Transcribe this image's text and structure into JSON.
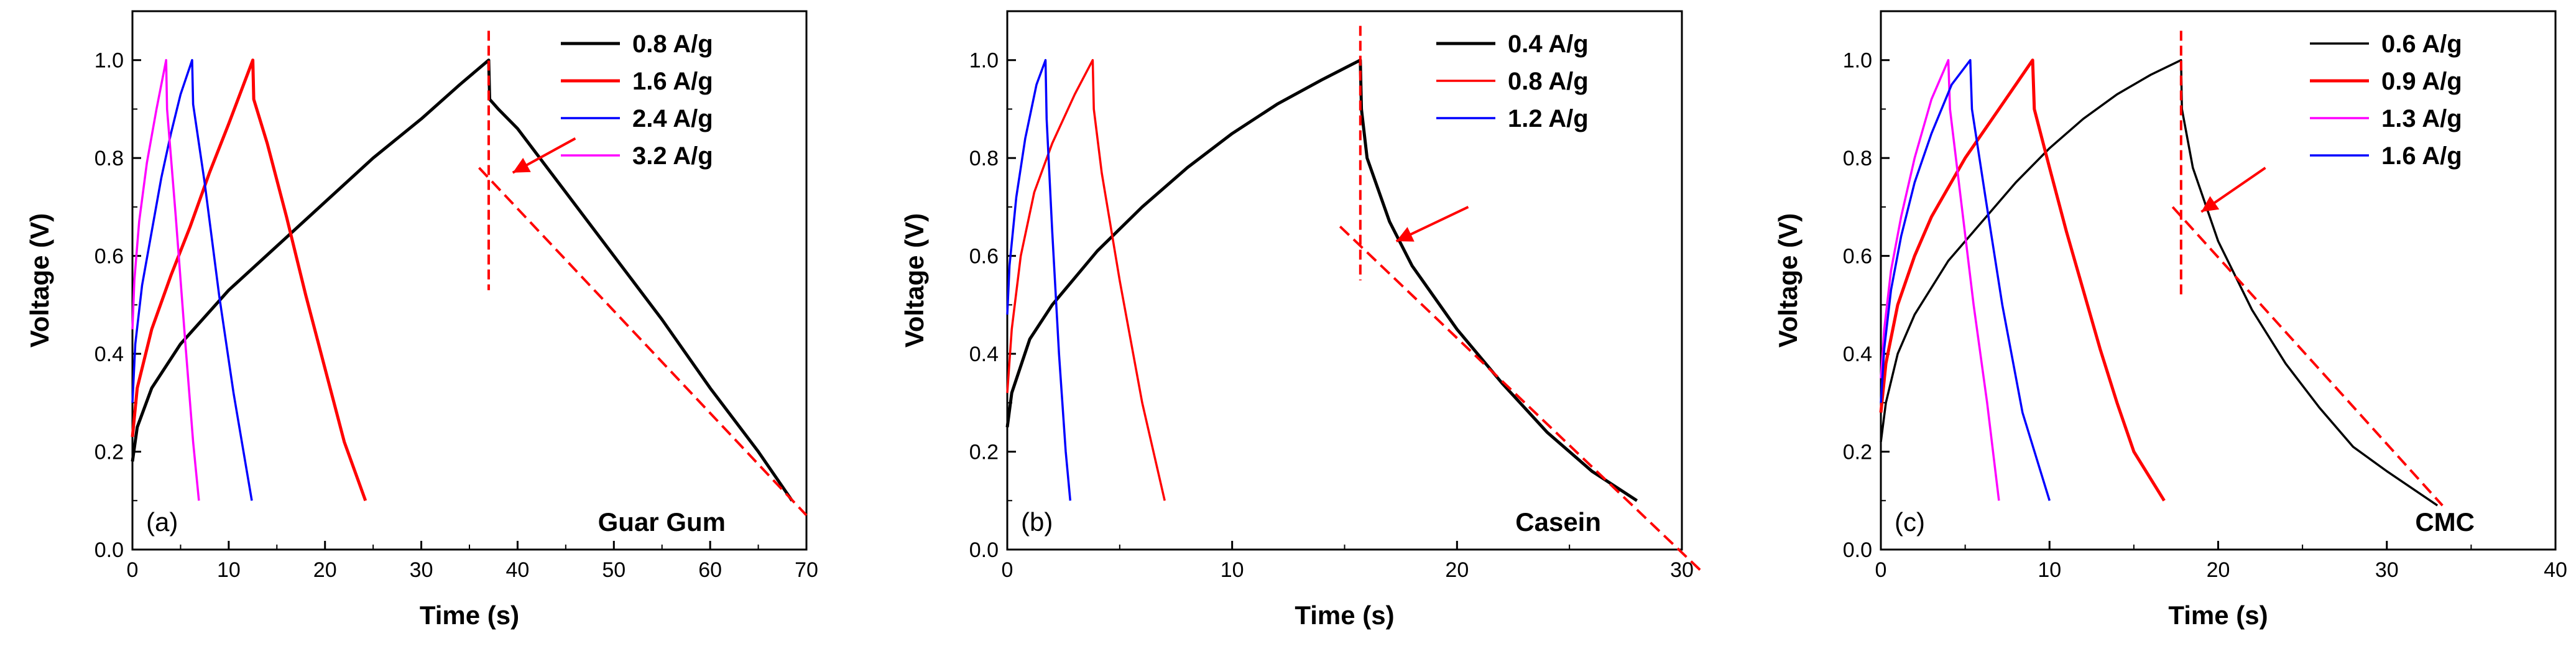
{
  "chart_data": [
    {
      "type": "line",
      "panel_label": "(a)",
      "sample_name": "Guar Gum",
      "xlabel": "Time (s)",
      "ylabel": "Voltage (V)",
      "xlim": [
        0,
        70
      ],
      "ylim": [
        0.0,
        1.1
      ],
      "xticks": [
        "0",
        "10",
        "20",
        "30",
        "40",
        "50",
        "60",
        "70"
      ],
      "yticks": [
        "0.0",
        "0.2",
        "0.4",
        "0.6",
        "0.8",
        "1.0"
      ],
      "legend_position": "top-right",
      "series": [
        {
          "name": "0.8 A/g",
          "color": "#000000",
          "bold": true,
          "charge": [
            [
              0,
              0.18
            ],
            [
              0.5,
              0.25
            ],
            [
              2,
              0.33
            ],
            [
              5,
              0.42
            ],
            [
              10,
              0.53
            ],
            [
              15,
              0.62
            ],
            [
              20,
              0.71
            ],
            [
              25,
              0.8
            ],
            [
              30,
              0.88
            ],
            [
              34,
              0.95
            ],
            [
              37,
              1.0
            ]
          ],
          "discharge": [
            [
              37,
              1.0
            ],
            [
              37.1,
              0.92
            ],
            [
              38,
              0.9
            ],
            [
              40,
              0.86
            ],
            [
              45,
              0.73
            ],
            [
              50,
              0.6
            ],
            [
              55,
              0.47
            ],
            [
              60,
              0.33
            ],
            [
              65,
              0.2
            ],
            [
              68.5,
              0.1
            ]
          ]
        },
        {
          "name": "1.6 A/g",
          "color": "#ff0000",
          "bold": true,
          "charge": [
            [
              0,
              0.23
            ],
            [
              0.5,
              0.33
            ],
            [
              2,
              0.45
            ],
            [
              4,
              0.56
            ],
            [
              6,
              0.66
            ],
            [
              8,
              0.77
            ],
            [
              10,
              0.87
            ],
            [
              12.5,
              1.0
            ]
          ],
          "discharge": [
            [
              12.5,
              1.0
            ],
            [
              12.6,
              0.92
            ],
            [
              14,
              0.83
            ],
            [
              16,
              0.68
            ],
            [
              18,
              0.52
            ],
            [
              20,
              0.37
            ],
            [
              22,
              0.22
            ],
            [
              24.2,
              0.1
            ]
          ]
        },
        {
          "name": "2.4 A/g",
          "color": "#0000ff",
          "bold": false,
          "charge": [
            [
              0,
              0.3
            ],
            [
              0.3,
              0.42
            ],
            [
              1,
              0.54
            ],
            [
              2,
              0.65
            ],
            [
              3,
              0.76
            ],
            [
              4,
              0.85
            ],
            [
              5,
              0.93
            ],
            [
              6.2,
              1.0
            ]
          ],
          "discharge": [
            [
              6.2,
              1.0
            ],
            [
              6.3,
              0.91
            ],
            [
              7.5,
              0.75
            ],
            [
              9,
              0.52
            ],
            [
              10.5,
              0.32
            ],
            [
              12.4,
              0.1
            ]
          ]
        },
        {
          "name": "3.2 A/g",
          "color": "#ff00ff",
          "bold": false,
          "charge": [
            [
              0,
              0.45
            ],
            [
              0.2,
              0.55
            ],
            [
              0.7,
              0.67
            ],
            [
              1.5,
              0.79
            ],
            [
              2.5,
              0.9
            ],
            [
              3.5,
              1.0
            ]
          ],
          "discharge": [
            [
              3.5,
              1.0
            ],
            [
              3.6,
              0.9
            ],
            [
              4.5,
              0.68
            ],
            [
              5.5,
              0.42
            ],
            [
              6.3,
              0.22
            ],
            [
              6.9,
              0.1
            ]
          ]
        }
      ],
      "annotation": {
        "ir_drop_vertical_x": 37,
        "ir_drop_range": [
          0.53,
          1.06
        ],
        "fit_line": [
          [
            36,
            0.78
          ],
          [
            70,
            0.07
          ]
        ],
        "arrow_from": [
          46,
          0.84
        ],
        "arrow_to": [
          39.5,
          0.77
        ],
        "color": "#ff0000"
      }
    },
    {
      "type": "line",
      "panel_label": "(b)",
      "sample_name": "Casein",
      "xlabel": "Time (s)",
      "ylabel": "Voltage (V)",
      "xlim": [
        0,
        30
      ],
      "ylim": [
        0.0,
        1.1
      ],
      "xticks": [
        "0",
        "10",
        "20",
        "30"
      ],
      "yticks": [
        "0.0",
        "0.2",
        "0.4",
        "0.6",
        "0.8",
        "1.0"
      ],
      "legend_position": "top-right",
      "series": [
        {
          "name": "0.4 A/g",
          "color": "#000000",
          "bold": true,
          "charge": [
            [
              0,
              0.25
            ],
            [
              0.2,
              0.32
            ],
            [
              1,
              0.43
            ],
            [
              2,
              0.5
            ],
            [
              4,
              0.61
            ],
            [
              6,
              0.7
            ],
            [
              8,
              0.78
            ],
            [
              10,
              0.85
            ],
            [
              12,
              0.91
            ],
            [
              14,
              0.96
            ],
            [
              15.7,
              1.0
            ]
          ],
          "discharge": [
            [
              15.7,
              1.0
            ],
            [
              15.75,
              0.9
            ],
            [
              16,
              0.8
            ],
            [
              17,
              0.67
            ],
            [
              18,
              0.58
            ],
            [
              20,
              0.45
            ],
            [
              22,
              0.34
            ],
            [
              24,
              0.24
            ],
            [
              26,
              0.16
            ],
            [
              28,
              0.1
            ]
          ]
        },
        {
          "name": "0.8 A/g",
          "color": "#ff0000",
          "bold": false,
          "charge": [
            [
              0,
              0.32
            ],
            [
              0.2,
              0.45
            ],
            [
              0.6,
              0.6
            ],
            [
              1.2,
              0.73
            ],
            [
              2,
              0.83
            ],
            [
              3,
              0.93
            ],
            [
              3.8,
              1.0
            ]
          ],
          "discharge": [
            [
              3.8,
              1.0
            ],
            [
              3.85,
              0.9
            ],
            [
              4.2,
              0.77
            ],
            [
              5,
              0.55
            ],
            [
              6,
              0.3
            ],
            [
              7,
              0.1
            ]
          ]
        },
        {
          "name": "1.2 A/g",
          "color": "#0000ff",
          "bold": false,
          "charge": [
            [
              0,
              0.48
            ],
            [
              0.1,
              0.58
            ],
            [
              0.4,
              0.72
            ],
            [
              0.8,
              0.84
            ],
            [
              1.3,
              0.95
            ],
            [
              1.7,
              1.0
            ]
          ],
          "discharge": [
            [
              1.7,
              1.0
            ],
            [
              1.75,
              0.88
            ],
            [
              2,
              0.65
            ],
            [
              2.3,
              0.4
            ],
            [
              2.6,
              0.2
            ],
            [
              2.8,
              0.1
            ]
          ]
        }
      ],
      "annotation": {
        "ir_drop_vertical_x": 15.7,
        "ir_drop_range": [
          0.55,
          1.07
        ],
        "fit_line": [
          [
            14.8,
            0.66
          ],
          [
            31,
            -0.05
          ]
        ],
        "arrow_from": [
          20.5,
          0.7
        ],
        "arrow_to": [
          17.3,
          0.63
        ],
        "color": "#ff0000"
      }
    },
    {
      "type": "line",
      "panel_label": "(c)",
      "sample_name": "CMC",
      "xlabel": "Time (s)",
      "ylabel": "Voltage (V)",
      "xlim": [
        0,
        40
      ],
      "ylim": [
        0.0,
        1.1
      ],
      "xticks": [
        "0",
        "10",
        "20",
        "30",
        "40"
      ],
      "yticks": [
        "0.0",
        "0.2",
        "0.4",
        "0.6",
        "0.8",
        "1.0"
      ],
      "legend_position": "top-right",
      "series": [
        {
          "name": "0.6 A/g",
          "color": "#000000",
          "bold": false,
          "charge": [
            [
              0,
              0.22
            ],
            [
              0.3,
              0.3
            ],
            [
              1,
              0.4
            ],
            [
              2,
              0.48
            ],
            [
              4,
              0.59
            ],
            [
              6,
              0.67
            ],
            [
              8,
              0.75
            ],
            [
              10,
              0.82
            ],
            [
              12,
              0.88
            ],
            [
              14,
              0.93
            ],
            [
              16,
              0.97
            ],
            [
              17.8,
              1.0
            ]
          ],
          "discharge": [
            [
              17.8,
              1.0
            ],
            [
              17.85,
              0.9
            ],
            [
              18.5,
              0.78
            ],
            [
              20,
              0.63
            ],
            [
              22,
              0.49
            ],
            [
              24,
              0.38
            ],
            [
              26,
              0.29
            ],
            [
              28,
              0.21
            ],
            [
              30,
              0.16
            ],
            [
              33,
              0.09
            ]
          ]
        },
        {
          "name": "0.9 A/g",
          "color": "#ff0000",
          "bold": true,
          "charge": [
            [
              0,
              0.28
            ],
            [
              0.3,
              0.38
            ],
            [
              1,
              0.5
            ],
            [
              2,
              0.6
            ],
            [
              3,
              0.68
            ],
            [
              5,
              0.8
            ],
            [
              7,
              0.9
            ],
            [
              9,
              1.0
            ]
          ],
          "discharge": [
            [
              9,
              1.0
            ],
            [
              9.1,
              0.9
            ],
            [
              10,
              0.78
            ],
            [
              11,
              0.65
            ],
            [
              12,
              0.53
            ],
            [
              13,
              0.41
            ],
            [
              14,
              0.3
            ],
            [
              15,
              0.2
            ],
            [
              16.8,
              0.1
            ]
          ]
        },
        {
          "name": "1.3 A/g",
          "color": "#ff00ff",
          "bold": false,
          "charge": [
            [
              0,
              0.35
            ],
            [
              0.2,
              0.45
            ],
            [
              0.6,
              0.57
            ],
            [
              1.2,
              0.68
            ],
            [
              2,
              0.8
            ],
            [
              3,
              0.92
            ],
            [
              4,
              1.0
            ]
          ],
          "discharge": [
            [
              4,
              1.0
            ],
            [
              4.1,
              0.9
            ],
            [
              4.8,
              0.7
            ],
            [
              5.5,
              0.5
            ],
            [
              6.3,
              0.3
            ],
            [
              7,
              0.1
            ]
          ]
        },
        {
          "name": "1.6 A/g",
          "color": "#0000ff",
          "bold": false,
          "charge": [
            [
              0,
              0.3
            ],
            [
              0.2,
              0.41
            ],
            [
              0.6,
              0.53
            ],
            [
              1.2,
              0.64
            ],
            [
              2,
              0.75
            ],
            [
              3,
              0.85
            ],
            [
              4.2,
              0.95
            ],
            [
              5.3,
              1.0
            ]
          ],
          "discharge": [
            [
              5.3,
              1.0
            ],
            [
              5.4,
              0.9
            ],
            [
              6.2,
              0.72
            ],
            [
              7.2,
              0.5
            ],
            [
              8.4,
              0.28
            ],
            [
              10,
              0.1
            ]
          ]
        }
      ],
      "annotation": {
        "ir_drop_vertical_x": 17.8,
        "ir_drop_range": [
          0.52,
          1.06
        ],
        "fit_line": [
          [
            17.3,
            0.7
          ],
          [
            33.3,
            0.09
          ]
        ],
        "arrow_from": [
          22.8,
          0.78
        ],
        "arrow_to": [
          19,
          0.69
        ],
        "color": "#ff0000"
      }
    }
  ]
}
